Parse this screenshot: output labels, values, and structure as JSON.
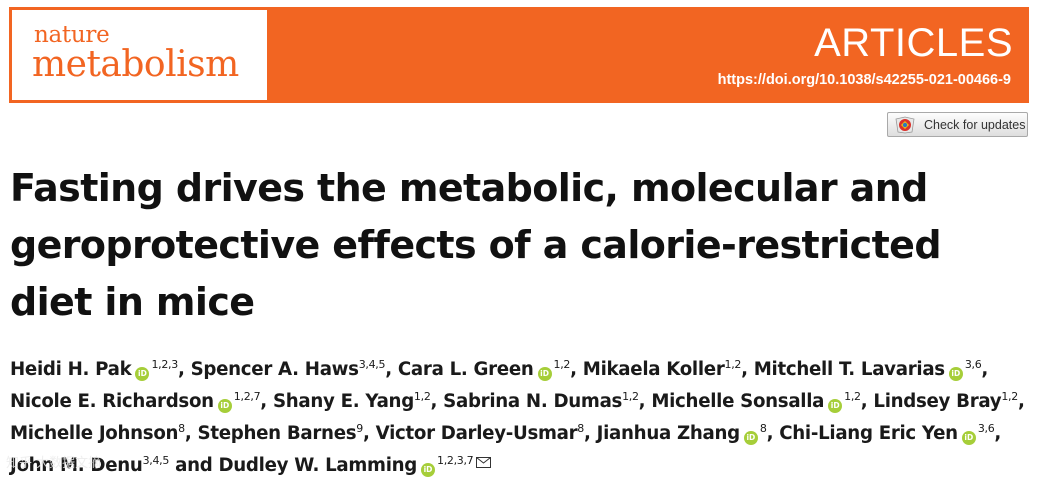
{
  "header": {
    "journal_line1": "nature",
    "journal_line2": "metabolism",
    "section": "ARTICLES",
    "doi": "https://doi.org/10.1038/s42255-021-00466-9",
    "brand_color": "#f26522"
  },
  "check_updates": {
    "label": "Check for updates"
  },
  "title": "Fasting drives the metabolic, molecular and geroprotective effects of a calorie-restricted diet in mice",
  "authors": [
    {
      "name": "Heidi H. Pak",
      "orcid": true,
      "aff": "1,2,3",
      "sep": ", "
    },
    {
      "name": "Spencer A. Haws",
      "orcid": false,
      "aff": "3,4,5",
      "sep": ", "
    },
    {
      "name": "Cara L. Green",
      "orcid": true,
      "aff": "1,2",
      "sep": ", "
    },
    {
      "name": "Mikaela Koller",
      "orcid": false,
      "aff": "1,2",
      "sep": ", "
    },
    {
      "name": "Mitchell T. Lavarias",
      "orcid": true,
      "aff": "3,6",
      "sep": ","
    },
    {
      "name": "Nicole E. Richardson",
      "orcid": true,
      "aff": "1,2,7",
      "sep": ", "
    },
    {
      "name": "Shany E. Yang",
      "orcid": false,
      "aff": "1,2",
      "sep": ", "
    },
    {
      "name": "Sabrina N. Dumas",
      "orcid": false,
      "aff": "1,2",
      "sep": ", "
    },
    {
      "name": "Michelle Sonsalla",
      "orcid": true,
      "aff": "1,2",
      "sep": ", "
    },
    {
      "name": "Lindsey Bray",
      "orcid": false,
      "aff": "1,2",
      "sep": ","
    },
    {
      "name": "Michelle Johnson",
      "orcid": false,
      "aff": "8",
      "sep": ", "
    },
    {
      "name": "Stephen Barnes",
      "orcid": false,
      "aff": "9",
      "sep": ", "
    },
    {
      "name": "Victor Darley-Usmar",
      "orcid": false,
      "aff": "8",
      "sep": ", "
    },
    {
      "name": "Jianhua Zhang",
      "orcid": true,
      "aff": "8",
      "sep": ", "
    },
    {
      "name": "Chi-Liang Eric Yen",
      "orcid": true,
      "aff": "3,6",
      "sep": ","
    },
    {
      "name": "John M. Denu",
      "orcid": false,
      "aff": "3,4,5",
      "sep": " "
    },
    {
      "name": "Dudley W. Lamming",
      "orcid": true,
      "aff": "1,2,3,7",
      "sep": ""
    }
  ],
  "author_conjunction": "and",
  "line_breaks_after": [
    4,
    9,
    14
  ],
  "orcid_label": "iD",
  "watermark": "知乎 大数据文摘"
}
